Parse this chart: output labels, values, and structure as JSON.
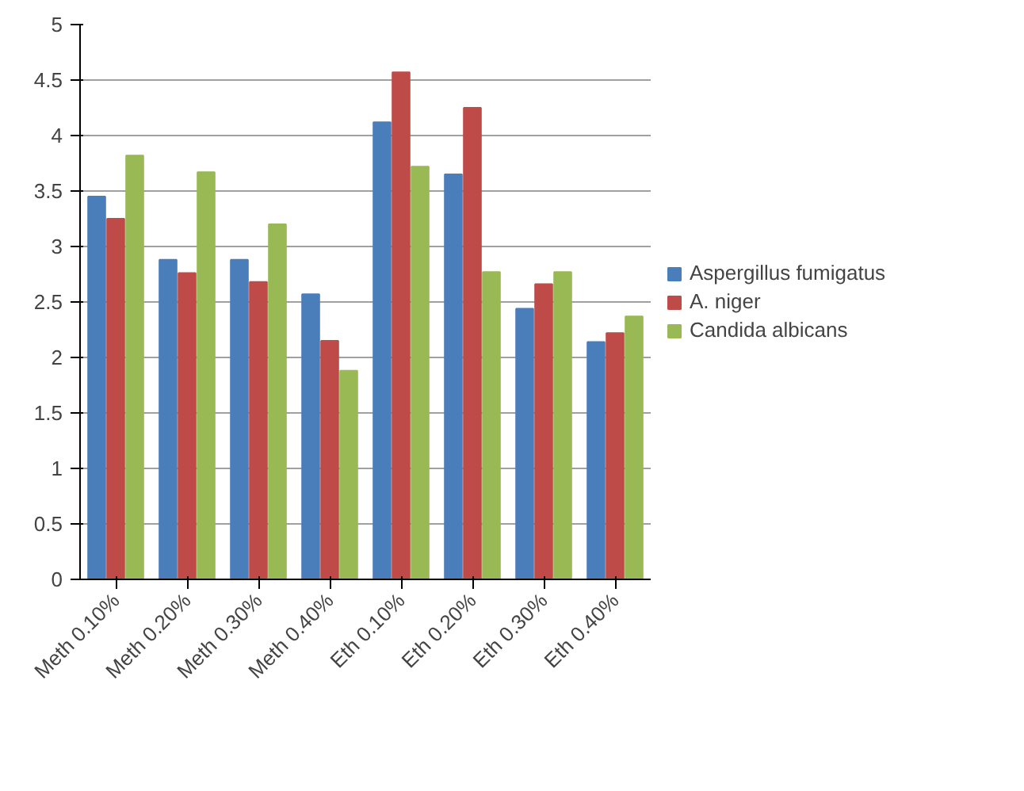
{
  "chart_data": {
    "type": "bar",
    "categories": [
      "Meth 0.10%",
      "Meth 0.20%",
      "Meth 0.30%",
      "Meth 0.40%",
      "Eth 0.10%",
      "Eth 0.20%",
      "Eth 0.30%",
      "Eth 0.40%"
    ],
    "series": [
      {
        "name": "Aspergillus fumigatus",
        "color": "#4a7ebb",
        "values": [
          3.45,
          2.88,
          2.88,
          2.57,
          4.12,
          3.65,
          2.44,
          2.14
        ]
      },
      {
        "name": "A. niger",
        "color": "#be4b48",
        "values": [
          3.25,
          2.76,
          2.68,
          2.15,
          4.57,
          4.25,
          2.66,
          2.22
        ]
      },
      {
        "name": "Candida albicans",
        "color": "#98b954",
        "values": [
          3.82,
          3.67,
          3.2,
          1.88,
          3.72,
          2.77,
          2.77,
          2.37
        ]
      }
    ],
    "ylim": [
      0,
      5
    ],
    "yticks": [
      0,
      0.5,
      1,
      1.5,
      2,
      2.5,
      3,
      3.5,
      4,
      4.5,
      5
    ],
    "grid": "y",
    "legend": "right"
  }
}
